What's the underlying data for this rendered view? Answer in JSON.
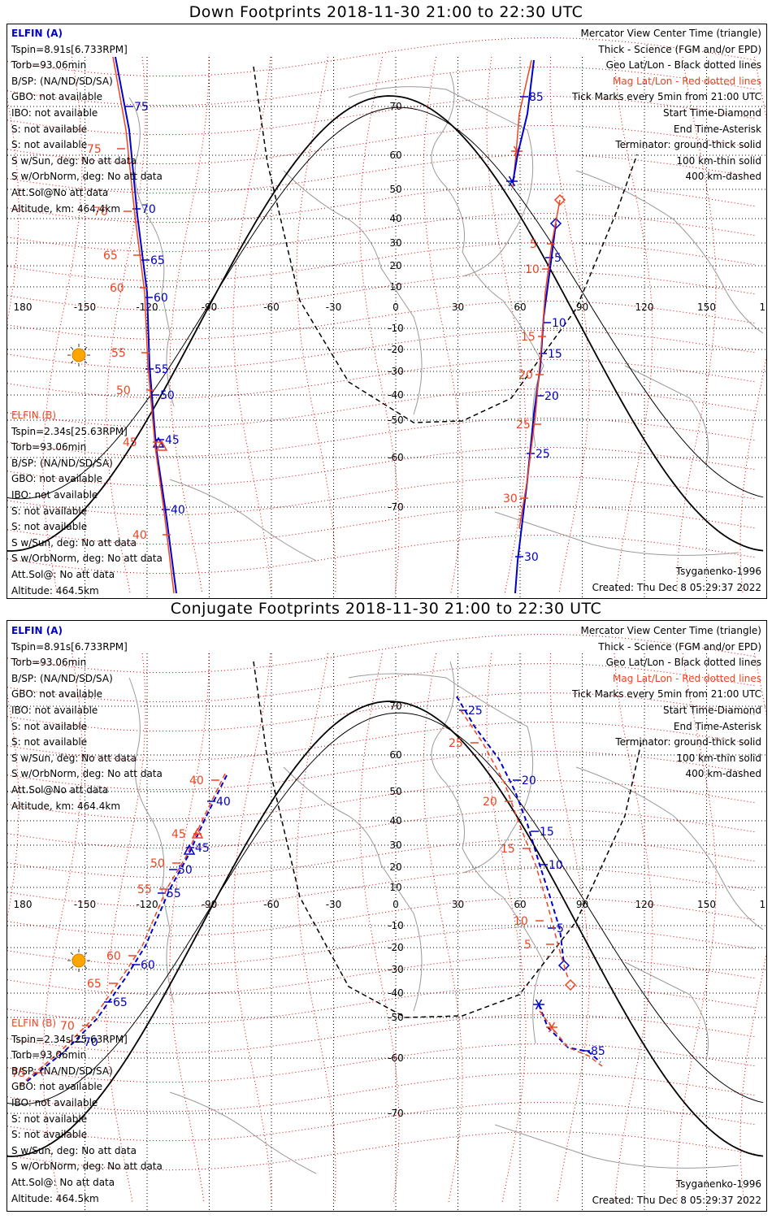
{
  "panels": [
    {
      "title": "Down Footprints 2018-11-30 21:00 to 22:30 UTC",
      "elfin_a": {
        "name": "ELFIN (A)",
        "lines": [
          "Tspin=8.91s[6.733RPM]",
          "Torb=93.06min",
          "B/SP: (NA/ND/SD/SA)",
          "GBO: not available",
          "IBO: not available",
          "S: not available",
          "S: not available",
          "S w/Sun, deg: No att data",
          "S w/OrbNorm, deg: No att data",
          "Att.Sol@No att data",
          "Altitude, km: 464.4km"
        ]
      },
      "elfin_b": {
        "name": "ELFIN (B)",
        "lines": [
          "Tspin=2.34s[25.63RPM]",
          "Torb=93.06min",
          "B/SP: (NA/ND/SD/SA)",
          "GBO: not available",
          "IBO: not available",
          "S: not available",
          "S: not available",
          "S w/Sun, deg: No att data",
          "S w/OrbNorm, deg: No att data",
          "Att.Sol@: No att data",
          "Altitude: 464.5km"
        ]
      },
      "legend": {
        "lines": [
          "Mercator View Center Time (triangle)",
          "Thick - Science (FGM and/or EPD)",
          "Geo Lat/Lon - Black dotted lines"
        ],
        "mag_line": "Mag Lat/Lon - Red dotted lines",
        "lines2": [
          "Tick Marks every 5min from 21:00 UTC",
          "Start Time-Diamond",
          "End Time-Asterisk",
          "Terminator: ground-thick solid",
          "100 km-thin solid",
          "400 km-dashed"
        ]
      },
      "model": "Tsyganenko-1996",
      "created": "Created: Thu Dec  8 05:29:37 2022"
    },
    {
      "title": "Conjugate Footprints 2018-11-30 21:00 to 22:30 UTC",
      "elfin_a": {
        "name": "ELFIN (A)",
        "lines": [
          "Tspin=8.91s[6.733RPM]",
          "Torb=93.06min",
          "B/SP: (NA/ND/SD/SA)",
          "GBO: not available",
          "IBO: not available",
          "S: not available",
          "S: not available",
          "S w/Sun, deg: No att data",
          "S w/OrbNorm, deg: No att data",
          "Att.Sol@No att data",
          "Altitude, km: 464.4km"
        ]
      },
      "elfin_b": {
        "name": "ELFIN (B)",
        "lines": [
          "Tspin=2.34s[25.63RPM]",
          "Torb=93.06min",
          "B/SP: (NA/ND/SD/SA)",
          "GBO: not available",
          "IBO: not available",
          "S: not available",
          "S: not available",
          "S w/Sun, deg: No att data",
          "S w/OrbNorm, deg: No att data",
          "Att.Sol@: No att data",
          "Altitude: 464.5km"
        ]
      },
      "legend": {
        "lines": [
          "Mercator View Center Time (triangle)",
          "Thick - Science (FGM and/or EPD)",
          "Geo Lat/Lon - Black dotted lines"
        ],
        "mag_line": "Mag Lat/Lon - Red dotted lines",
        "lines2": [
          "Tick Marks every 5min from 21:00 UTC",
          "Start Time-Diamond",
          "End Time-Asterisk",
          "Terminator: ground-thick solid",
          "100 km-thin solid",
          "400 km-dashed"
        ]
      },
      "model": "Tsyganenko-1996",
      "created": "Created: Thu Dec  8 05:29:37 2022"
    }
  ],
  "axes": {
    "lon_ticks": [
      "180",
      "-150",
      "-120",
      "-90",
      "-60",
      "-30",
      "0",
      "30",
      "60",
      "90",
      "120",
      "150",
      "180"
    ],
    "lat_ticks": [
      "70",
      "60",
      "50",
      "40",
      "30",
      "20",
      "10",
      "-10",
      "-20",
      "-30",
      "-40",
      "-50",
      "-60",
      "-70"
    ]
  },
  "colors": {
    "elfin_a": "#0000cc",
    "elfin_b": "#ee4422",
    "grid_geo": "#000000",
    "grid_mag": "#dd0000",
    "coast": "#9a9a9a"
  },
  "tracks": {
    "down": {
      "a_west": {
        "labels": [
          "75",
          "70",
          "65",
          "60",
          "55",
          "50",
          "45",
          "40"
        ]
      },
      "b_west": {
        "labels": [
          "75",
          "70",
          "65",
          "60",
          "55",
          "50",
          "45",
          "40"
        ]
      },
      "a_east": {
        "labels": [
          "85",
          "5",
          "10",
          "15",
          "20",
          "25",
          "30"
        ]
      },
      "b_east": {
        "labels": [
          "5",
          "10",
          "15",
          "20",
          "25",
          "30"
        ]
      }
    },
    "conj": {
      "a_west": {
        "labels": [
          "40",
          "45",
          "50",
          "55",
          "60",
          "65",
          "70"
        ]
      },
      "b_west": {
        "labels": [
          "40",
          "45",
          "50",
          "55",
          "60",
          "65",
          "70",
          "75"
        ]
      },
      "a_east": {
        "labels": [
          "25",
          "20",
          "15",
          "10",
          "5",
          "85"
        ]
      },
      "b_east": {
        "labels": [
          "25",
          "20",
          "15",
          "10",
          "5"
        ]
      }
    }
  }
}
